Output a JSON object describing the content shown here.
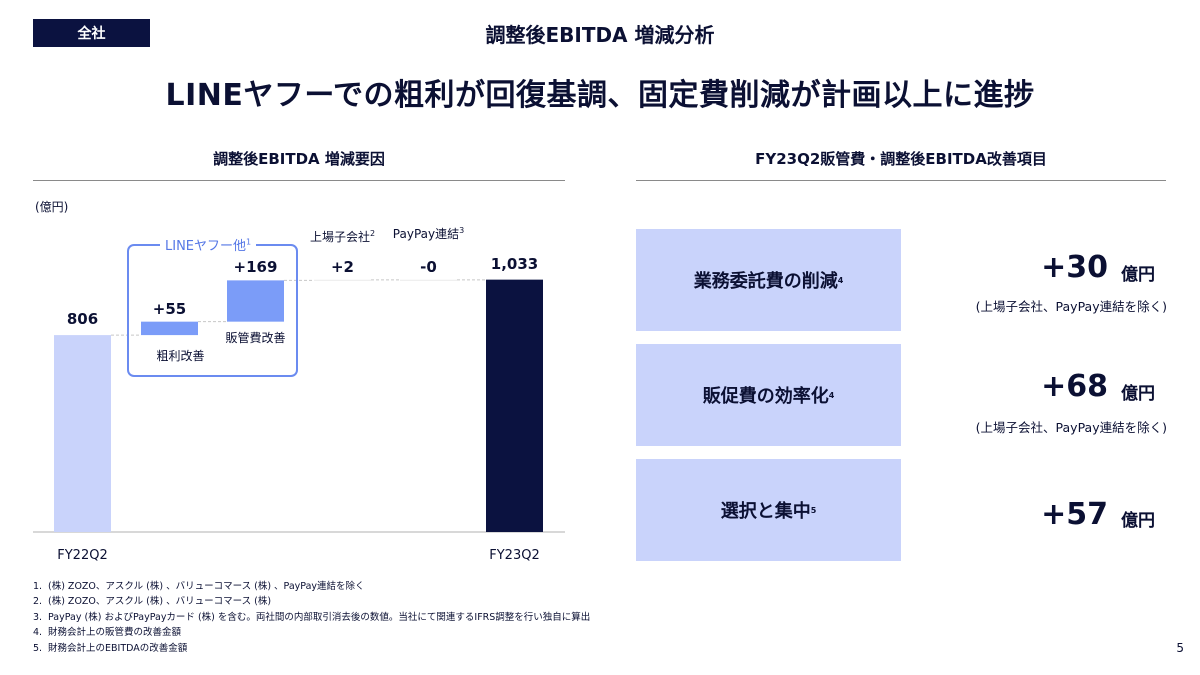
{
  "header": {
    "tag": "全社",
    "title": "調整後EBITDA 増減分析",
    "headline": "LINEヤフーでの粗利が回復基調、固定費削減が計画以上に進捗"
  },
  "left_section": {
    "title": "調整後EBITDA 増減要因",
    "unit": "(億円)",
    "group_label": "LINEヤフー他",
    "group_label_sup": "1"
  },
  "chart_data": {
    "type": "waterfall",
    "unit": "億円",
    "steps": [
      {
        "label": "FY22Q2",
        "value": 806,
        "display": "806",
        "kind": "total",
        "color": "#c9d3fb"
      },
      {
        "label": "粗利改善",
        "value": 55,
        "display": "+55",
        "kind": "delta",
        "color": "#7b9cf8"
      },
      {
        "label": "販管費改善",
        "value": 169,
        "display": "+169",
        "kind": "delta",
        "color": "#7b9cf8"
      },
      {
        "label": "上場子会社",
        "sup": "2",
        "value": 2,
        "display": "+2",
        "kind": "delta",
        "color": "#7b9cf8"
      },
      {
        "label": "PayPay連結",
        "sup": "3",
        "value": 0,
        "display": "-0",
        "kind": "delta",
        "color": "#7b9cf8"
      },
      {
        "label": "FY23Q2",
        "value": 1033,
        "display": "1,033",
        "kind": "total",
        "color": "#0b1240"
      }
    ]
  },
  "right_section": {
    "title": "FY23Q2販管費・調整後EBITDA改善項目",
    "items": [
      {
        "label": "業務委託費の削減",
        "sup": "4",
        "value": "+30",
        "unit": "億円",
        "note": "(上場子会社、PayPay連結を除く)"
      },
      {
        "label": "販促費の効率化",
        "sup": "4",
        "value": "+68",
        "unit": "億円",
        "note": "(上場子会社、PayPay連結を除く)"
      },
      {
        "label": "選択と集中",
        "sup": "5",
        "value": "+57",
        "unit": "億円",
        "note": ""
      }
    ]
  },
  "footnotes": [
    {
      "num": "1.",
      "text": "(株) ZOZO、アスクル (株) 、バリューコマース (株) 、PayPay連結を除く"
    },
    {
      "num": "2.",
      "text": "(株) ZOZO、アスクル (株) 、バリューコマース (株)"
    },
    {
      "num": "3.",
      "text": "PayPay (株) およびPayPayカード (株) を含む。両社間の内部取引消去後の数値。当社にて関連するIFRS調整を行い独自に算出"
    },
    {
      "num": "4.",
      "text": "財務会計上の販管費の改善金額"
    },
    {
      "num": "5.",
      "text": "財務会計上のEBITDAの改善金額"
    }
  ],
  "page_number": "5"
}
